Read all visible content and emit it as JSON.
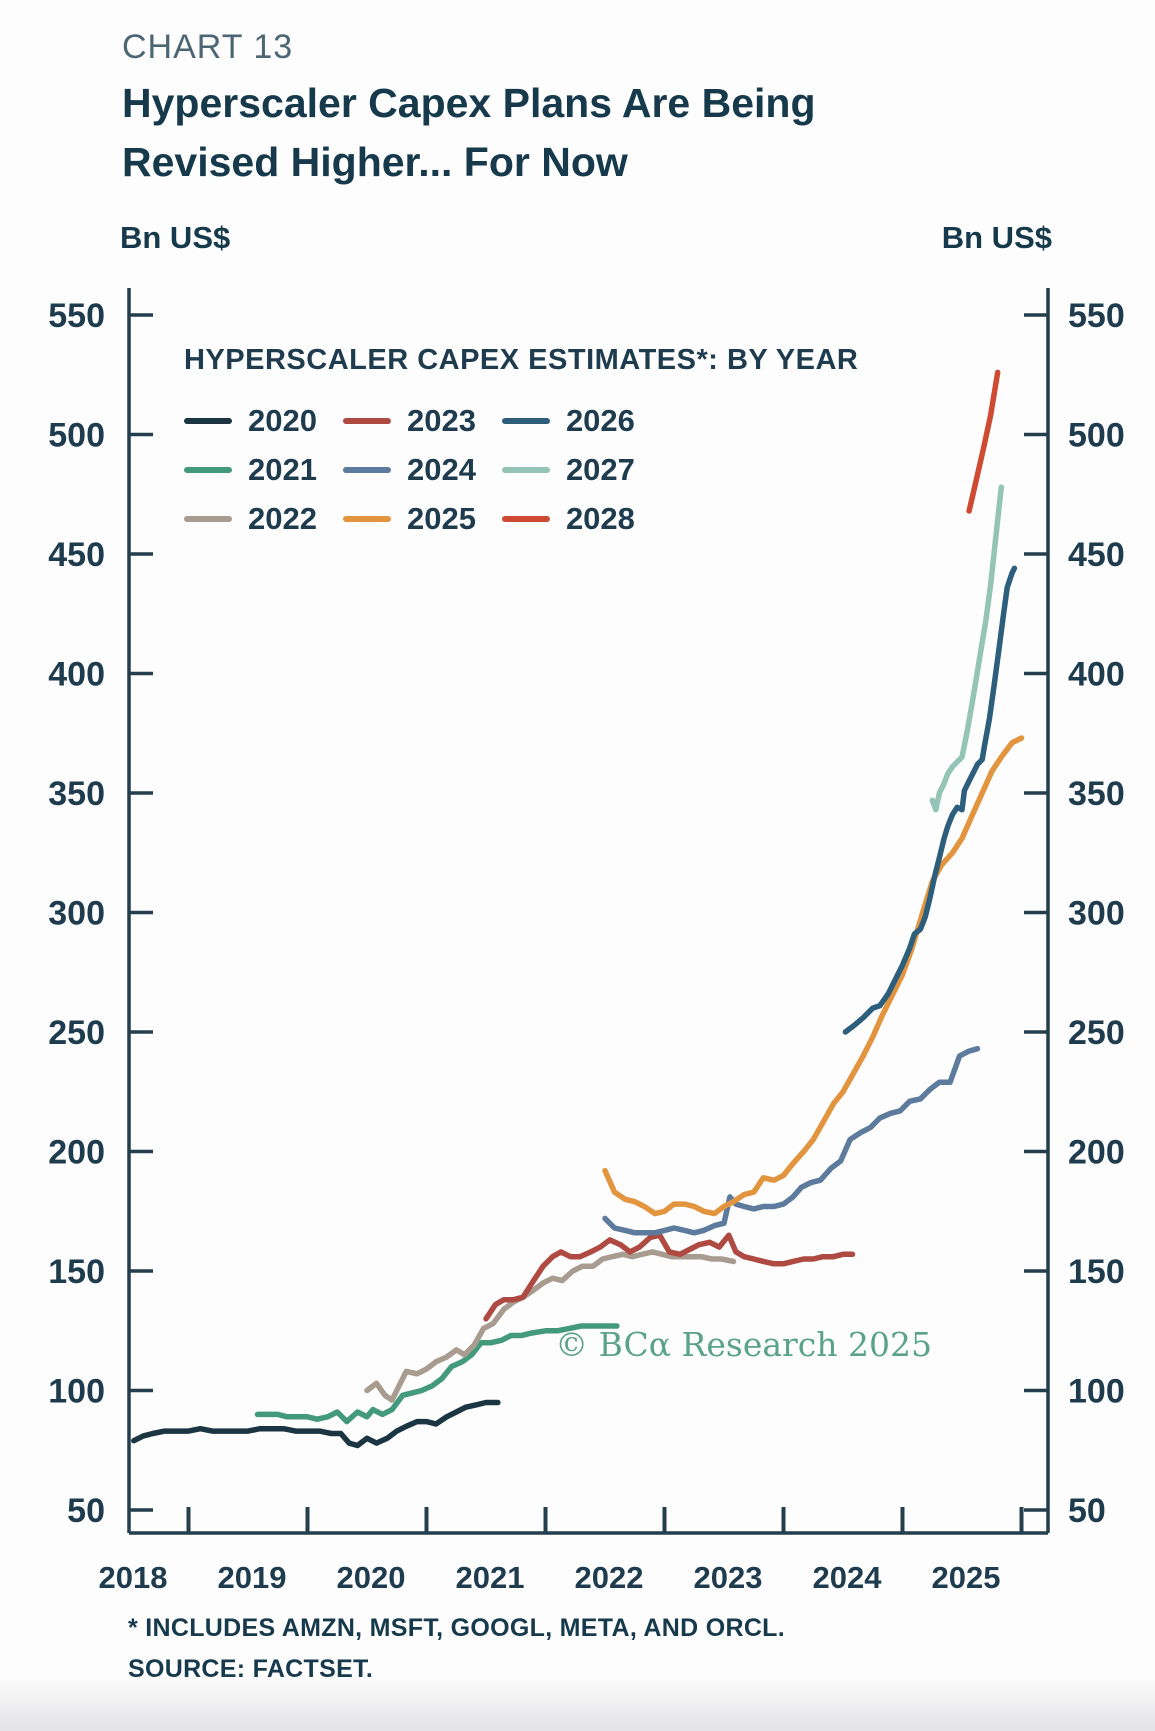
{
  "header": {
    "kicker": "CHART 13",
    "title_line1": "Hyperscaler Capex Plans Are Being",
    "title_line2": "Revised Higher... For Now",
    "unit_left": "Bn US$",
    "unit_right": "Bn US$"
  },
  "footnote": {
    "line1": "* INCLUDES AMZN, MSFT, GOOGL, META, AND ORCL.",
    "line2": "SOURCE: FACTSET."
  },
  "watermark": {
    "text": "© BCα Research 2025",
    "color": "#5aa389"
  },
  "colors": {
    "text": "#1f3c4e",
    "axis": "#243e4d"
  },
  "chart_data": {
    "type": "line",
    "title": "HYPERSCALER CAPEX ESTIMATES*: BY YEAR",
    "xlabel": "",
    "ylabel": "Bn US$",
    "ylim": [
      50,
      550
    ],
    "ytick_step": 50,
    "x_years": [
      2018,
      2019,
      2020,
      2021,
      2022,
      2023,
      2024,
      2025
    ],
    "x_end": 2025.72,
    "grid": false,
    "legend_position": "top-left-inside",
    "legend_order": [
      "2020",
      "2023",
      "2026",
      "2021",
      "2024",
      "2027",
      "2022",
      "2025",
      "2028"
    ],
    "series": [
      {
        "name": "2020",
        "color": "#1b3642",
        "points": [
          [
            2018.04,
            79
          ],
          [
            2018.12,
            81
          ],
          [
            2018.2,
            82
          ],
          [
            2018.3,
            83
          ],
          [
            2018.4,
            83
          ],
          [
            2018.5,
            83
          ],
          [
            2018.6,
            84
          ],
          [
            2018.7,
            83
          ],
          [
            2018.8,
            83
          ],
          [
            2018.9,
            83
          ],
          [
            2019.0,
            83
          ],
          [
            2019.1,
            84
          ],
          [
            2019.2,
            84
          ],
          [
            2019.3,
            84
          ],
          [
            2019.4,
            83
          ],
          [
            2019.5,
            83
          ],
          [
            2019.6,
            83
          ],
          [
            2019.7,
            82
          ],
          [
            2019.78,
            82
          ],
          [
            2019.85,
            78
          ],
          [
            2019.92,
            77
          ],
          [
            2020.0,
            80
          ],
          [
            2020.08,
            78
          ],
          [
            2020.17,
            80
          ],
          [
            2020.25,
            83
          ],
          [
            2020.33,
            85
          ],
          [
            2020.42,
            87
          ],
          [
            2020.5,
            87
          ],
          [
            2020.58,
            86
          ],
          [
            2020.67,
            89
          ],
          [
            2020.75,
            91
          ],
          [
            2020.83,
            93
          ],
          [
            2020.92,
            94
          ],
          [
            2021.0,
            95
          ],
          [
            2021.1,
            95
          ]
        ]
      },
      {
        "name": "2021",
        "color": "#42997b",
        "points": [
          [
            2019.08,
            90
          ],
          [
            2019.17,
            90
          ],
          [
            2019.25,
            90
          ],
          [
            2019.33,
            89
          ],
          [
            2019.42,
            89
          ],
          [
            2019.5,
            89
          ],
          [
            2019.58,
            88
          ],
          [
            2019.67,
            89
          ],
          [
            2019.75,
            91
          ],
          [
            2019.83,
            87
          ],
          [
            2019.92,
            91
          ],
          [
            2020.0,
            89
          ],
          [
            2020.05,
            92
          ],
          [
            2020.13,
            90
          ],
          [
            2020.21,
            92
          ],
          [
            2020.3,
            98
          ],
          [
            2020.38,
            99
          ],
          [
            2020.46,
            100
          ],
          [
            2020.55,
            102
          ],
          [
            2020.63,
            105
          ],
          [
            2020.71,
            110
          ],
          [
            2020.8,
            112
          ],
          [
            2020.88,
            115
          ],
          [
            2020.96,
            120
          ],
          [
            2021.04,
            120
          ],
          [
            2021.13,
            121
          ],
          [
            2021.21,
            123
          ],
          [
            2021.3,
            123
          ],
          [
            2021.38,
            124
          ],
          [
            2021.5,
            125
          ],
          [
            2021.6,
            125
          ],
          [
            2021.7,
            126
          ],
          [
            2021.8,
            127
          ],
          [
            2021.9,
            127
          ],
          [
            2022.0,
            127
          ],
          [
            2022.1,
            127
          ]
        ]
      },
      {
        "name": "2022",
        "color": "#a89c90",
        "points": [
          [
            2020.0,
            100
          ],
          [
            2020.08,
            103
          ],
          [
            2020.15,
            98
          ],
          [
            2020.21,
            96
          ],
          [
            2020.27,
            102
          ],
          [
            2020.33,
            108
          ],
          [
            2020.42,
            107
          ],
          [
            2020.5,
            109
          ],
          [
            2020.58,
            112
          ],
          [
            2020.67,
            114
          ],
          [
            2020.75,
            117
          ],
          [
            2020.82,
            115
          ],
          [
            2020.9,
            119
          ],
          [
            2020.98,
            126
          ],
          [
            2021.06,
            128
          ],
          [
            2021.15,
            134
          ],
          [
            2021.23,
            137
          ],
          [
            2021.31,
            139
          ],
          [
            2021.4,
            142
          ],
          [
            2021.48,
            145
          ],
          [
            2021.56,
            147
          ],
          [
            2021.64,
            146
          ],
          [
            2021.73,
            150
          ],
          [
            2021.81,
            152
          ],
          [
            2021.9,
            152
          ],
          [
            2021.98,
            155
          ],
          [
            2022.06,
            156
          ],
          [
            2022.15,
            157
          ],
          [
            2022.23,
            156
          ],
          [
            2022.31,
            157
          ],
          [
            2022.4,
            158
          ],
          [
            2022.48,
            157
          ],
          [
            2022.56,
            156
          ],
          [
            2022.65,
            156
          ],
          [
            2022.73,
            156
          ],
          [
            2022.81,
            156
          ],
          [
            2022.9,
            155
          ],
          [
            2022.98,
            155
          ],
          [
            2023.08,
            154
          ]
        ]
      },
      {
        "name": "2023",
        "color": "#ae4a42",
        "points": [
          [
            2021.0,
            130
          ],
          [
            2021.08,
            136
          ],
          [
            2021.15,
            138
          ],
          [
            2021.23,
            138
          ],
          [
            2021.31,
            139
          ],
          [
            2021.4,
            146
          ],
          [
            2021.48,
            152
          ],
          [
            2021.56,
            156
          ],
          [
            2021.63,
            158
          ],
          [
            2021.71,
            156
          ],
          [
            2021.79,
            156
          ],
          [
            2021.88,
            158
          ],
          [
            2021.96,
            160
          ],
          [
            2022.04,
            163
          ],
          [
            2022.13,
            161
          ],
          [
            2022.21,
            158
          ],
          [
            2022.29,
            160
          ],
          [
            2022.38,
            164
          ],
          [
            2022.46,
            165
          ],
          [
            2022.54,
            158
          ],
          [
            2022.63,
            157
          ],
          [
            2022.71,
            159
          ],
          [
            2022.79,
            161
          ],
          [
            2022.88,
            162
          ],
          [
            2022.96,
            160
          ],
          [
            2023.04,
            165
          ],
          [
            2023.1,
            158
          ],
          [
            2023.17,
            156
          ],
          [
            2023.25,
            155
          ],
          [
            2023.33,
            154
          ],
          [
            2023.42,
            153
          ],
          [
            2023.5,
            153
          ],
          [
            2023.58,
            154
          ],
          [
            2023.67,
            155
          ],
          [
            2023.75,
            155
          ],
          [
            2023.83,
            156
          ],
          [
            2023.92,
            156
          ],
          [
            2024.0,
            157
          ],
          [
            2024.08,
            157
          ]
        ]
      },
      {
        "name": "2024",
        "color": "#5d7b9c",
        "points": [
          [
            2022.0,
            172
          ],
          [
            2022.08,
            168
          ],
          [
            2022.17,
            167
          ],
          [
            2022.25,
            166
          ],
          [
            2022.33,
            166
          ],
          [
            2022.42,
            166
          ],
          [
            2022.5,
            167
          ],
          [
            2022.58,
            168
          ],
          [
            2022.67,
            167
          ],
          [
            2022.75,
            166
          ],
          [
            2022.83,
            167
          ],
          [
            2022.92,
            169
          ],
          [
            2023.0,
            170
          ],
          [
            2023.05,
            181
          ],
          [
            2023.1,
            178
          ],
          [
            2023.17,
            177
          ],
          [
            2023.25,
            176
          ],
          [
            2023.33,
            177
          ],
          [
            2023.42,
            177
          ],
          [
            2023.5,
            178
          ],
          [
            2023.58,
            181
          ],
          [
            2023.65,
            185
          ],
          [
            2023.73,
            187
          ],
          [
            2023.81,
            188
          ],
          [
            2023.9,
            193
          ],
          [
            2023.98,
            196
          ],
          [
            2024.06,
            205
          ],
          [
            2024.15,
            208
          ],
          [
            2024.23,
            210
          ],
          [
            2024.31,
            214
          ],
          [
            2024.4,
            216
          ],
          [
            2024.48,
            217
          ],
          [
            2024.56,
            221
          ],
          [
            2024.65,
            222
          ],
          [
            2024.73,
            226
          ],
          [
            2024.81,
            229
          ],
          [
            2024.9,
            229
          ],
          [
            2024.98,
            240
          ],
          [
            2025.06,
            242
          ],
          [
            2025.13,
            243
          ]
        ]
      },
      {
        "name": "2025",
        "color": "#e2943f",
        "points": [
          [
            2022.0,
            192
          ],
          [
            2022.08,
            183
          ],
          [
            2022.17,
            180
          ],
          [
            2022.25,
            179
          ],
          [
            2022.33,
            177
          ],
          [
            2022.42,
            174
          ],
          [
            2022.5,
            175
          ],
          [
            2022.58,
            178
          ],
          [
            2022.67,
            178
          ],
          [
            2022.75,
            177
          ],
          [
            2022.83,
            175
          ],
          [
            2022.92,
            174
          ],
          [
            2023.0,
            177
          ],
          [
            2023.08,
            179
          ],
          [
            2023.17,
            182
          ],
          [
            2023.25,
            183
          ],
          [
            2023.33,
            189
          ],
          [
            2023.42,
            188
          ],
          [
            2023.5,
            190
          ],
          [
            2023.58,
            195
          ],
          [
            2023.67,
            200
          ],
          [
            2023.75,
            205
          ],
          [
            2023.83,
            212
          ],
          [
            2023.92,
            220
          ],
          [
            2024.0,
            225
          ],
          [
            2024.08,
            232
          ],
          [
            2024.17,
            240
          ],
          [
            2024.25,
            248
          ],
          [
            2024.33,
            257
          ],
          [
            2024.42,
            266
          ],
          [
            2024.5,
            274
          ],
          [
            2024.58,
            285
          ],
          [
            2024.67,
            300
          ],
          [
            2024.75,
            313
          ],
          [
            2024.83,
            320
          ],
          [
            2024.92,
            325
          ],
          [
            2025.0,
            331
          ],
          [
            2025.08,
            340
          ],
          [
            2025.17,
            350
          ],
          [
            2025.25,
            359
          ],
          [
            2025.33,
            365
          ],
          [
            2025.42,
            371
          ],
          [
            2025.5,
            373
          ]
        ]
      },
      {
        "name": "2026",
        "color": "#2d5f7d",
        "points": [
          [
            2024.02,
            250
          ],
          [
            2024.1,
            253
          ],
          [
            2024.17,
            256
          ],
          [
            2024.25,
            260
          ],
          [
            2024.31,
            261
          ],
          [
            2024.38,
            266
          ],
          [
            2024.44,
            272
          ],
          [
            2024.5,
            278
          ],
          [
            2024.56,
            285
          ],
          [
            2024.6,
            291
          ],
          [
            2024.65,
            293
          ],
          [
            2024.69,
            298
          ],
          [
            2024.73,
            306
          ],
          [
            2024.77,
            315
          ],
          [
            2024.81,
            323
          ],
          [
            2024.85,
            331
          ],
          [
            2024.88,
            336
          ],
          [
            2024.92,
            341
          ],
          [
            2024.96,
            344
          ],
          [
            2025.0,
            343
          ],
          [
            2025.02,
            351
          ],
          [
            2025.06,
            355
          ],
          [
            2025.1,
            359
          ],
          [
            2025.13,
            362
          ],
          [
            2025.17,
            364
          ],
          [
            2025.19,
            370
          ],
          [
            2025.23,
            381
          ],
          [
            2025.27,
            395
          ],
          [
            2025.31,
            410
          ],
          [
            2025.35,
            425
          ],
          [
            2025.38,
            436
          ],
          [
            2025.42,
            442
          ],
          [
            2025.44,
            444
          ]
        ]
      },
      {
        "name": "2027",
        "color": "#93c4b5",
        "points": [
          [
            2024.75,
            347
          ],
          [
            2024.78,
            343
          ],
          [
            2024.81,
            350
          ],
          [
            2024.85,
            354
          ],
          [
            2024.88,
            358
          ],
          [
            2024.92,
            361
          ],
          [
            2024.96,
            363
          ],
          [
            2025.0,
            365
          ],
          [
            2025.04,
            375
          ],
          [
            2025.08,
            386
          ],
          [
            2025.12,
            398
          ],
          [
            2025.16,
            410
          ],
          [
            2025.2,
            422
          ],
          [
            2025.24,
            437
          ],
          [
            2025.28,
            455
          ],
          [
            2025.31,
            469
          ],
          [
            2025.33,
            478
          ]
        ]
      },
      {
        "name": "2028",
        "color": "#cf4a33",
        "points": [
          [
            2025.06,
            468
          ],
          [
            2025.12,
            481
          ],
          [
            2025.18,
            494
          ],
          [
            2025.24,
            508
          ],
          [
            2025.3,
            526
          ]
        ]
      }
    ]
  }
}
